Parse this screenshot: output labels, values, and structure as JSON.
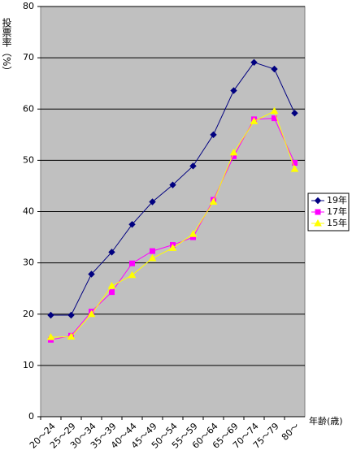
{
  "chart_data": {
    "type": "line",
    "y_label": "投票率（%）",
    "x_label": "年齢(歳)",
    "categories": [
      "20～24",
      "25～29",
      "30～34",
      "35～39",
      "40～44",
      "45～49",
      "50～54",
      "55～59",
      "60～64",
      "65～69",
      "70～74",
      "75～79",
      "80～"
    ],
    "series": [
      {
        "name": "19年",
        "color": "#000080",
        "marker": "diamond",
        "values": [
          19.8,
          19.8,
          27.8,
          32.1,
          37.5,
          41.9,
          45.2,
          48.9,
          55.0,
          63.6,
          69.1,
          67.8,
          59.2
        ]
      },
      {
        "name": "17年",
        "color": "#ff00ff",
        "marker": "square",
        "values": [
          15.0,
          15.8,
          20.5,
          24.3,
          29.9,
          32.3,
          33.5,
          35.0,
          42.3,
          50.8,
          58.0,
          58.2,
          49.5
        ]
      },
      {
        "name": "15年",
        "color": "#ffff00",
        "marker": "triangle",
        "values": [
          15.5,
          15.6,
          20.0,
          25.5,
          27.6,
          30.9,
          32.9,
          35.6,
          41.9,
          51.5,
          57.6,
          59.6,
          48.3
        ]
      }
    ],
    "ylim": [
      0,
      80
    ],
    "yticks": [
      0,
      10,
      20,
      30,
      40,
      50,
      60,
      70,
      80
    ],
    "grid": true,
    "legend": "right"
  }
}
